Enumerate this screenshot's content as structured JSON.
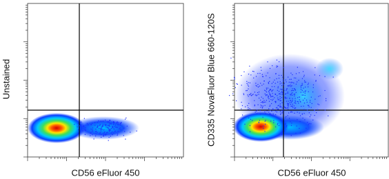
{
  "panels": [
    {
      "y_label": "Unstained",
      "x_label": "CD56 eFluor 450"
    },
    {
      "y_label": "CD335 NovaFluor Blue 660-120S",
      "x_label": "CD56 eFluor 450"
    }
  ]
}
